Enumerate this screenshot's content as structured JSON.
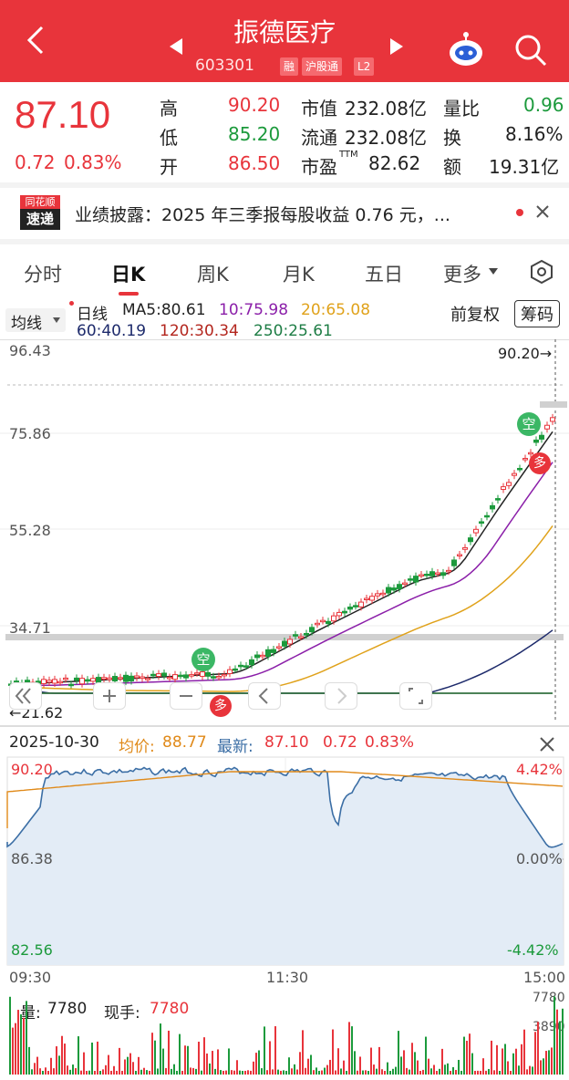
{
  "header": {
    "title": "振德医疗",
    "code": "603301",
    "tags": [
      "融",
      "沪股通",
      "L2"
    ]
  },
  "quote": {
    "price": "87.10",
    "change": "0.72",
    "change_pct": "0.83%",
    "high_label": "高",
    "high": "90.20",
    "low_label": "低",
    "low": "85.20",
    "open_label": "开",
    "open": "86.50",
    "mktcap_label": "市值",
    "mktcap": "232.08亿",
    "float_label": "流通",
    "float": "232.08亿",
    "pe_label": "市盈",
    "pe_sup": "TTM",
    "pe": "82.62",
    "volratio_label": "量比",
    "volratio": "0.96",
    "turnover_label": "换",
    "turnover": "8.16%",
    "amount_label": "额",
    "amount": "19.31亿"
  },
  "news": {
    "logo_top": "同花顺",
    "logo_bottom": "速递",
    "text": "业绩披露：2025 年三季报每股收益 0.76 元，..."
  },
  "tabs": [
    "分时",
    "日K",
    "周K",
    "月K",
    "五日",
    "更多"
  ],
  "active_tab": "日K",
  "indicator": {
    "mode": "均线",
    "line": "日线",
    "ma5": "MA5:80.61",
    "ma10": "10:75.98",
    "ma20": "20:65.08",
    "ma60": "60:40.19",
    "ma120": "120:30.34",
    "ma250": "250:25.61",
    "adjust": "前复权",
    "chip": "筹码"
  },
  "kline": {
    "y_labels": [
      "96.43",
      "75.86",
      "55.28",
      "34.71"
    ],
    "high_mark": "90.20→",
    "low_mark": "←21.62",
    "signal_kong": "空",
    "signal_duo": "多"
  },
  "intraday": {
    "date": "2025-10-30",
    "avg_label": "均价:",
    "avg": "88.77",
    "last_label": "最新:",
    "last": "87.10",
    "chg": "0.72",
    "chg_pct": "0.83%",
    "price_top": "90.20",
    "price_mid": "86.38",
    "price_bot": "82.56",
    "pct_top": "4.42%",
    "pct_mid": "0.00%",
    "pct_bot": "-4.42%",
    "times": [
      "09:30",
      "11:30",
      "15:00"
    ]
  },
  "volume": {
    "label": "量:",
    "value": "7780",
    "hand_label": "现手:",
    "hand": "7780",
    "axis_top": "7780",
    "axis_mid": "3890"
  },
  "colors": {
    "up": "#e8343b",
    "down": "#1c9a3c",
    "ma5": "#222222",
    "ma10": "#8b1fa9",
    "ma20": "#e0a21b",
    "ma60": "#1d2a6b",
    "ma120": "#b3261e",
    "ma250": "#1e7d45",
    "price_line": "#3b6ea5",
    "avg_line": "#e08a1a"
  }
}
